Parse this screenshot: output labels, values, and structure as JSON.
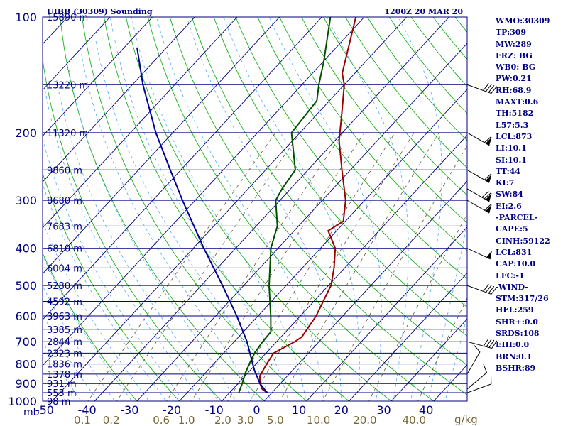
{
  "header": {
    "station": "UIBB (30309) Sounding",
    "time": "1200Z 20 MAR 20"
  },
  "chart_data": {
    "type": "skew-t",
    "pressure_unit": "mb",
    "mixing_ratio_unit": "g/kg",
    "pressure_levels": [
      100,
      200,
      300,
      400,
      500,
      600,
      700,
      800,
      900,
      1000
    ],
    "temperature_ticks": [
      -50,
      -40,
      -30,
      -20,
      -10,
      0,
      10,
      20,
      30,
      40
    ],
    "mixing_ratio_ticks": [
      "0.1",
      "0.2",
      "0.6",
      "1.0",
      "2.0",
      "3.0",
      "5.0",
      "10.0",
      "20.0",
      "40.0"
    ],
    "height_labels": [
      {
        "p": 100,
        "text": "15890 m"
      },
      {
        "p": 150,
        "text": "13220 m"
      },
      {
        "p": 200,
        "text": "11320 m"
      },
      {
        "p": 250,
        "text": "9860 m"
      },
      {
        "p": 300,
        "text": "8680 m"
      },
      {
        "p": 350,
        "text": "7683 m"
      },
      {
        "p": 400,
        "text": "6810 m"
      },
      {
        "p": 450,
        "text": "6004 m"
      },
      {
        "p": 500,
        "text": "5280 m"
      },
      {
        "p": 550,
        "text": "4592 m"
      },
      {
        "p": 600,
        "text": "3963 m"
      },
      {
        "p": 650,
        "text": "3385 m"
      },
      {
        "p": 700,
        "text": "2844 m"
      },
      {
        "p": 750,
        "text": "2323 m"
      },
      {
        "p": 800,
        "text": "1836 m"
      },
      {
        "p": 850,
        "text": "1378 m"
      },
      {
        "p": 900,
        "text": "931 m"
      },
      {
        "p": 950,
        "text": "553 m"
      },
      {
        "p": 1000,
        "text": "98 m"
      }
    ],
    "series": [
      {
        "key": "temperature",
        "color": "#990000",
        "points": [
          [
            951,
            -1.1
          ],
          [
            930,
            -3.1
          ],
          [
            900,
            -4.8
          ],
          [
            860,
            -6.5
          ],
          [
            800,
            -7.5
          ],
          [
            750,
            -8.2
          ],
          [
            700,
            -5.7
          ],
          [
            680,
            -5.1
          ],
          [
            600,
            -6.3
          ],
          [
            500,
            -9.4
          ],
          [
            450,
            -12.5
          ],
          [
            400,
            -16.5
          ],
          [
            360,
            -22
          ],
          [
            340,
            -20.5
          ],
          [
            300,
            -24.5
          ],
          [
            250,
            -32
          ],
          [
            210,
            -39
          ],
          [
            180,
            -44
          ],
          [
            150,
            -50
          ],
          [
            140,
            -53
          ],
          [
            100,
            -62
          ]
        ]
      },
      {
        "key": "dewpoint",
        "color": "#005000",
        "points": [
          [
            951,
            -7.8
          ],
          [
            900,
            -9.0
          ],
          [
            850,
            -10.4
          ],
          [
            800,
            -11.6
          ],
          [
            750,
            -12.7
          ],
          [
            700,
            -13.3
          ],
          [
            660,
            -13.5
          ],
          [
            600,
            -17
          ],
          [
            500,
            -24
          ],
          [
            400,
            -31.7
          ],
          [
            350,
            -35
          ],
          [
            300,
            -41
          ],
          [
            280,
            -42
          ],
          [
            250,
            -43
          ],
          [
            200,
            -52
          ],
          [
            165,
            -53
          ],
          [
            150,
            -56
          ],
          [
            130,
            -60
          ],
          [
            100,
            -68
          ]
        ]
      },
      {
        "key": "parcel",
        "color": "#000099",
        "points": [
          [
            951,
            -1.1
          ],
          [
            900,
            -4.8
          ],
          [
            831,
            -9.0
          ],
          [
            800,
            -10.8
          ],
          [
            700,
            -17.0
          ],
          [
            600,
            -25.0
          ],
          [
            500,
            -35.0
          ],
          [
            400,
            -47.5
          ],
          [
            300,
            -63.0
          ],
          [
            250,
            -72.5
          ],
          [
            200,
            -84.0
          ],
          [
            150,
            -97.5
          ],
          [
            120,
            -107.0
          ]
        ]
      }
    ],
    "wind_barbs": [
      {
        "p": 951,
        "dir": 250,
        "kt": 10
      },
      {
        "p": 930,
        "dir": 230,
        "kt": 10
      },
      {
        "p": 850,
        "dir": 210,
        "kt": 10
      },
      {
        "p": 700,
        "dir": 285,
        "kt": 40
      },
      {
        "p": 500,
        "dir": 290,
        "kt": 40
      },
      {
        "p": 400,
        "dir": 295,
        "kt": 50
      },
      {
        "p": 300,
        "dir": 300,
        "kt": 60
      },
      {
        "p": 280,
        "dir": 300,
        "kt": 70
      },
      {
        "p": 250,
        "dir": 300,
        "kt": 60
      },
      {
        "p": 200,
        "dir": 300,
        "kt": 60
      },
      {
        "p": 150,
        "dir": 290,
        "kt": 40
      }
    ]
  },
  "indices": [
    "WMO:30309",
    "TP:309",
    "MW:289",
    "FRZ: BG",
    "WB0: BG",
    "PW:0.21",
    "RH:68.9",
    "MAXT:0.6",
    "TH:5182",
    "L57:5.3",
    "LCL:873",
    "LI:10.1",
    "SI:10.1",
    "TT:44",
    "KI:7",
    "SW:84",
    "EI:2.6",
    "-PARCEL-",
    "CAPE:5",
    "CINH:59122",
    "LCL:831",
    "CAP:10.0",
    "LFC:-1",
    "-WIND-",
    "STM:317/26",
    "HEL:259",
    "SHR+:0.0",
    "SRDS:108",
    "EHI:0.0",
    "BRN:0.1",
    "BSHR:89"
  ],
  "colors": {
    "frame": "#000080",
    "isobar": "#000080",
    "isotherm": "#000080",
    "dry_adiabat": "#00aa00",
    "moist_adiabat": "#55aaff",
    "mixing_ratio": "#665533",
    "temperature": "#990000",
    "dewpoint": "#005000",
    "parcel": "#000099",
    "wind": "#000000"
  }
}
